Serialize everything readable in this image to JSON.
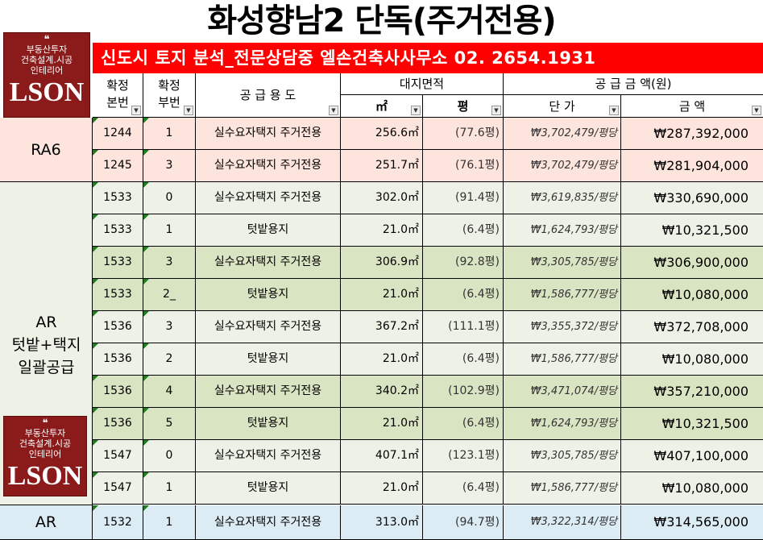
{
  "title": "화성향남2 단독(주거전용)",
  "banner": "신도시 토지 분석_전문상담중 엘손건축사사무소 02. 2654.1931",
  "logo": {
    "line1": "부동산투자",
    "line2": "건축설계.시공",
    "line3": "인테리어",
    "brand": "LSON",
    "quote": "❝"
  },
  "header": {
    "main_lot": [
      "확정",
      "본번"
    ],
    "sub_lot": [
      "확정",
      "부번"
    ],
    "use": "공 급 용 도",
    "area": "대지면적",
    "m2": "㎡",
    "pyeong": "평",
    "supply": "공 급 금 액(원)",
    "unit_price": "단  가",
    "amount": "금  액",
    "dropdown": "▼"
  },
  "groups": [
    {
      "label": [
        "RA6"
      ]
    },
    {
      "label": [
        "AR",
        "텃밭+택지",
        "일괄공급"
      ]
    },
    {
      "label": [
        "AR"
      ]
    }
  ],
  "rows": [
    {
      "main": "1244",
      "sub": "1",
      "use": "실수요자택지 주거전용",
      "m2": "256.6㎡",
      "py": "(77.6평)",
      "unit": "₩3,702,479/평당",
      "amount": "₩287,392,000",
      "color": "#fde4dc"
    },
    {
      "main": "1245",
      "sub": "3",
      "use": "실수요자택지 주거전용",
      "m2": "251.7㎡",
      "py": "(76.1평)",
      "unit": "₩3,702,479/평당",
      "amount": "₩281,904,000",
      "color": "#fde4dc"
    },
    {
      "main": "1533",
      "sub": "0",
      "use": "실수요자택지 주거전용",
      "m2": "302.0㎡",
      "py": "(91.4평)",
      "unit": "₩3,619,835/평당",
      "amount": "₩330,690,000",
      "color": "#eef2e6"
    },
    {
      "main": "1533",
      "sub": "1",
      "use": "텃밭용지",
      "m2": "21.0㎡",
      "py": "(6.4평)",
      "unit": "₩1,624,793/평당",
      "amount": "₩10,321,500",
      "color": "#eef2e6"
    },
    {
      "main": "1533",
      "sub": "3",
      "use": "실수요자택지 주거전용",
      "m2": "306.9㎡",
      "py": "(92.8평)",
      "unit": "₩3,305,785/평당",
      "amount": "₩306,900,000",
      "color": "#d9e4c2"
    },
    {
      "main": "1533",
      "sub": "2_",
      "use": "텃밭용지",
      "m2": "21.0㎡",
      "py": "(6.4평)",
      "unit": "₩1,586,777/평당",
      "amount": "₩10,080,000",
      "color": "#d9e4c2"
    },
    {
      "main": "1536",
      "sub": "3",
      "use": "실수요자택지 주거전용",
      "m2": "367.2㎡",
      "py": "(111.1평)",
      "unit": "₩3,355,372/평당",
      "amount": "₩372,708,000",
      "color": "#eef2e6"
    },
    {
      "main": "1536",
      "sub": "2",
      "use": "텃밭용지",
      "m2": "21.0㎡",
      "py": "(6.4평)",
      "unit": "₩1,586,777/평당",
      "amount": "₩10,080,000",
      "color": "#eef2e6"
    },
    {
      "main": "1536",
      "sub": "4",
      "use": "실수요자택지 주거전용",
      "m2": "340.2㎡",
      "py": "(102.9평)",
      "unit": "₩3,471,074/평당",
      "amount": "₩357,210,000",
      "color": "#d9e4c2"
    },
    {
      "main": "1536",
      "sub": "5",
      "use": "텃밭용지",
      "m2": "21.0㎡",
      "py": "(6.4평)",
      "unit": "₩1,624,793/평당",
      "amount": "₩10,321,500",
      "color": "#d9e4c2"
    },
    {
      "main": "1547",
      "sub": "0",
      "use": "실수요자택지 주거전용",
      "m2": "407.1㎡",
      "py": "(123.1평)",
      "unit": "₩3,305,785/평당",
      "amount": "₩407,100,000",
      "color": "#eef2e6"
    },
    {
      "main": "1547",
      "sub": "1",
      "use": "텃밭용지",
      "m2": "21.0㎡",
      "py": "(6.4평)",
      "unit": "₩1,586,777/평당",
      "amount": "₩10,080,000",
      "color": "#eef2e6"
    },
    {
      "main": "1532",
      "sub": "1",
      "use": "실수요자택지 주거전용",
      "m2": "313.0㎡",
      "py": "(94.7평)",
      "unit": "₩3,322,314/평당",
      "amount": "₩314,565,000",
      "color": "#dcecf5"
    }
  ]
}
